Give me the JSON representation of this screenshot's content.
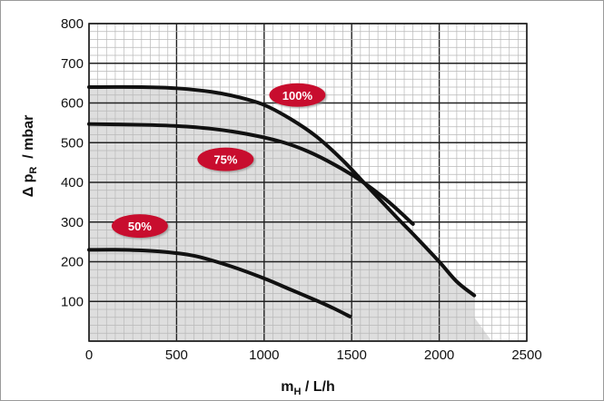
{
  "chart_data": {
    "type": "line",
    "title": "",
    "xlabel": {
      "base": "m",
      "sub": "H",
      "rest": " / L/h"
    },
    "ylabel": {
      "base": "Δ p",
      "sub": "R",
      "rest": "  / mbar"
    },
    "xlim": [
      0,
      2500
    ],
    "ylim": [
      0,
      800
    ],
    "x_ticks": [
      "0",
      "500",
      "1000",
      "1500",
      "2000",
      "2500"
    ],
    "y_ticks": [
      "100",
      "200",
      "300",
      "400",
      "500",
      "600",
      "700",
      "800"
    ],
    "grid": true,
    "shaded_operating_region": true,
    "colors": {
      "curve": "#111111",
      "badge": "#c8102e",
      "region": "#dedede",
      "grid_minor": "#b8b8b8",
      "grid_major": "#222222"
    },
    "series": [
      {
        "name": "100%",
        "points": [
          [
            0,
            640
          ],
          [
            300,
            640
          ],
          [
            500,
            637
          ],
          [
            700,
            628
          ],
          [
            850,
            615
          ],
          [
            1000,
            595
          ],
          [
            1150,
            560
          ],
          [
            1300,
            515
          ],
          [
            1450,
            455
          ],
          [
            1600,
            385
          ],
          [
            1750,
            315
          ],
          [
            1850,
            270
          ],
          [
            2000,
            200
          ],
          [
            2100,
            150
          ],
          [
            2200,
            115
          ]
        ]
      },
      {
        "name": "75%",
        "points": [
          [
            0,
            547
          ],
          [
            300,
            545
          ],
          [
            500,
            542
          ],
          [
            700,
            535
          ],
          [
            900,
            522
          ],
          [
            1100,
            502
          ],
          [
            1250,
            478
          ],
          [
            1400,
            445
          ],
          [
            1550,
            405
          ],
          [
            1700,
            355
          ],
          [
            1850,
            295
          ]
        ]
      },
      {
        "name": "50%",
        "points": [
          [
            0,
            230
          ],
          [
            200,
            230
          ],
          [
            400,
            226
          ],
          [
            600,
            215
          ],
          [
            800,
            190
          ],
          [
            1000,
            158
          ],
          [
            1150,
            130
          ],
          [
            1300,
            102
          ],
          [
            1400,
            82
          ],
          [
            1490,
            62
          ]
        ]
      }
    ]
  }
}
